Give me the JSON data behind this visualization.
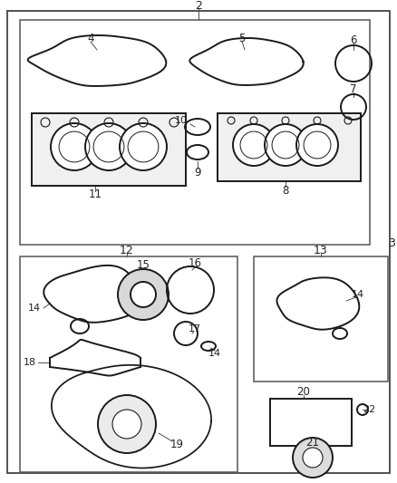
{
  "bg_color": "#ffffff",
  "part_color": "#1a1a1a",
  "border_color": "#444444",
  "label_color": "#222222",
  "fig_w": 4.38,
  "fig_h": 5.33,
  "dpi": 100
}
